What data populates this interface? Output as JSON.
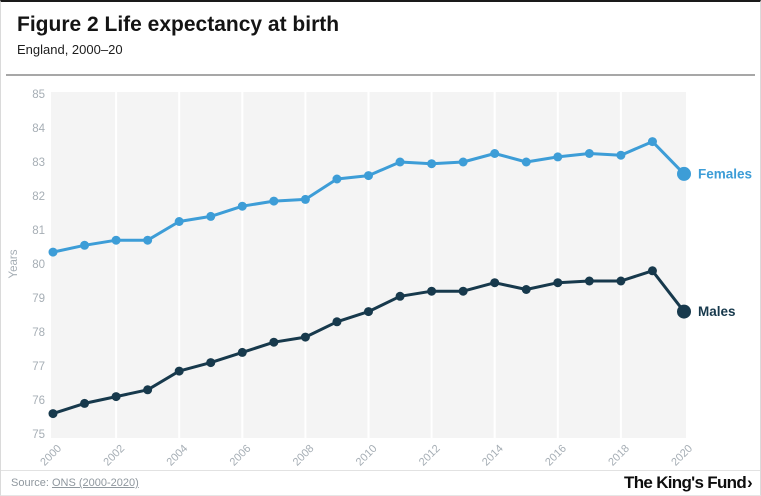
{
  "header": {
    "title": "Figure 2 Life expectancy at birth",
    "subtitle": "England, 2000–20"
  },
  "footer": {
    "source_prefix": "Source: ",
    "source_link": "ONS (2000-2020)",
    "logo_text": "The King's Fund",
    "logo_chevron": "›"
  },
  "colors": {
    "females": "#3d9dd7",
    "males": "#17394c",
    "plot_background": "#f4f4f4",
    "gridline": "#ffffff",
    "axis_text": "#a6aeb5",
    "title_text": "#141414"
  },
  "chart_data": {
    "type": "line",
    "title": "Figure 2 Life expectancy at birth",
    "subtitle": "England, 2000–20",
    "xlabel": "",
    "ylabel": "Years",
    "ylim": [
      75,
      85
    ],
    "y_ticks": [
      75,
      76,
      77,
      78,
      79,
      80,
      81,
      82,
      83,
      84,
      85
    ],
    "x": [
      2000,
      2001,
      2002,
      2003,
      2004,
      2005,
      2006,
      2007,
      2008,
      2009,
      2010,
      2011,
      2012,
      2013,
      2014,
      2015,
      2016,
      2017,
      2018,
      2019,
      2020
    ],
    "x_ticks": [
      2000,
      2002,
      2004,
      2006,
      2008,
      2010,
      2012,
      2014,
      2016,
      2018,
      2020
    ],
    "grid": "vertical white gridlines on gray plot, no horizontal gridlines",
    "legend_position": "series labels at right end of lines",
    "series": [
      {
        "name": "Females",
        "color": "#3d9dd7",
        "values": [
          80.35,
          80.55,
          80.7,
          80.7,
          81.25,
          81.4,
          81.7,
          81.85,
          81.9,
          82.5,
          82.6,
          83.0,
          82.95,
          83.0,
          83.25,
          83.0,
          83.15,
          83.25,
          83.2,
          83.6,
          82.65
        ]
      },
      {
        "name": "Males",
        "color": "#17394c",
        "values": [
          75.6,
          75.9,
          76.1,
          76.3,
          76.85,
          77.1,
          77.4,
          77.7,
          77.85,
          78.3,
          78.6,
          79.05,
          79.2,
          79.2,
          79.45,
          79.25,
          79.45,
          79.5,
          79.5,
          79.8,
          78.6
        ]
      }
    ]
  }
}
